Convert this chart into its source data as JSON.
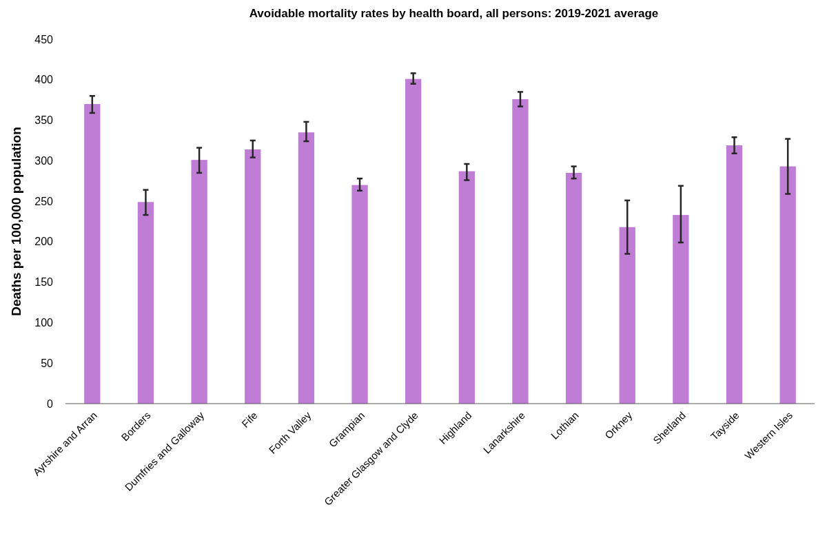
{
  "chart_data": {
    "type": "bar",
    "title": "Avoidable mortality rates by health board, all persons: 2019-2021 average",
    "ylabel": "Deaths per 100,000 population",
    "categories": [
      "Ayrshire and Arran",
      "Borders",
      "Dumfries and Galloway",
      "Fife",
      "Forth Valley",
      "Grampian",
      "Greater Glasgow and Clyde",
      "Highland",
      "Lanarkshire",
      "Lothian",
      "Orkney",
      "Shetland",
      "Tayside",
      "Western Isles"
    ],
    "values": [
      370,
      249,
      301,
      314,
      335,
      270,
      401,
      287,
      376,
      285,
      218,
      233,
      319,
      293
    ],
    "errors": [
      [
        359,
        380
      ],
      [
        233,
        264
      ],
      [
        285,
        316
      ],
      [
        304,
        325
      ],
      [
        324,
        348
      ],
      [
        263,
        278
      ],
      [
        395,
        408
      ],
      [
        276,
        296
      ],
      [
        367,
        385
      ],
      [
        278,
        293
      ],
      [
        185,
        251
      ],
      [
        199,
        269
      ],
      [
        309,
        329
      ],
      [
        259,
        327
      ]
    ],
    "color": "#bf7dd6",
    "ylim": [
      0,
      450
    ],
    "yticks": [
      0,
      50,
      100,
      150,
      200,
      250,
      300,
      350,
      400,
      450
    ],
    "grid": false
  }
}
